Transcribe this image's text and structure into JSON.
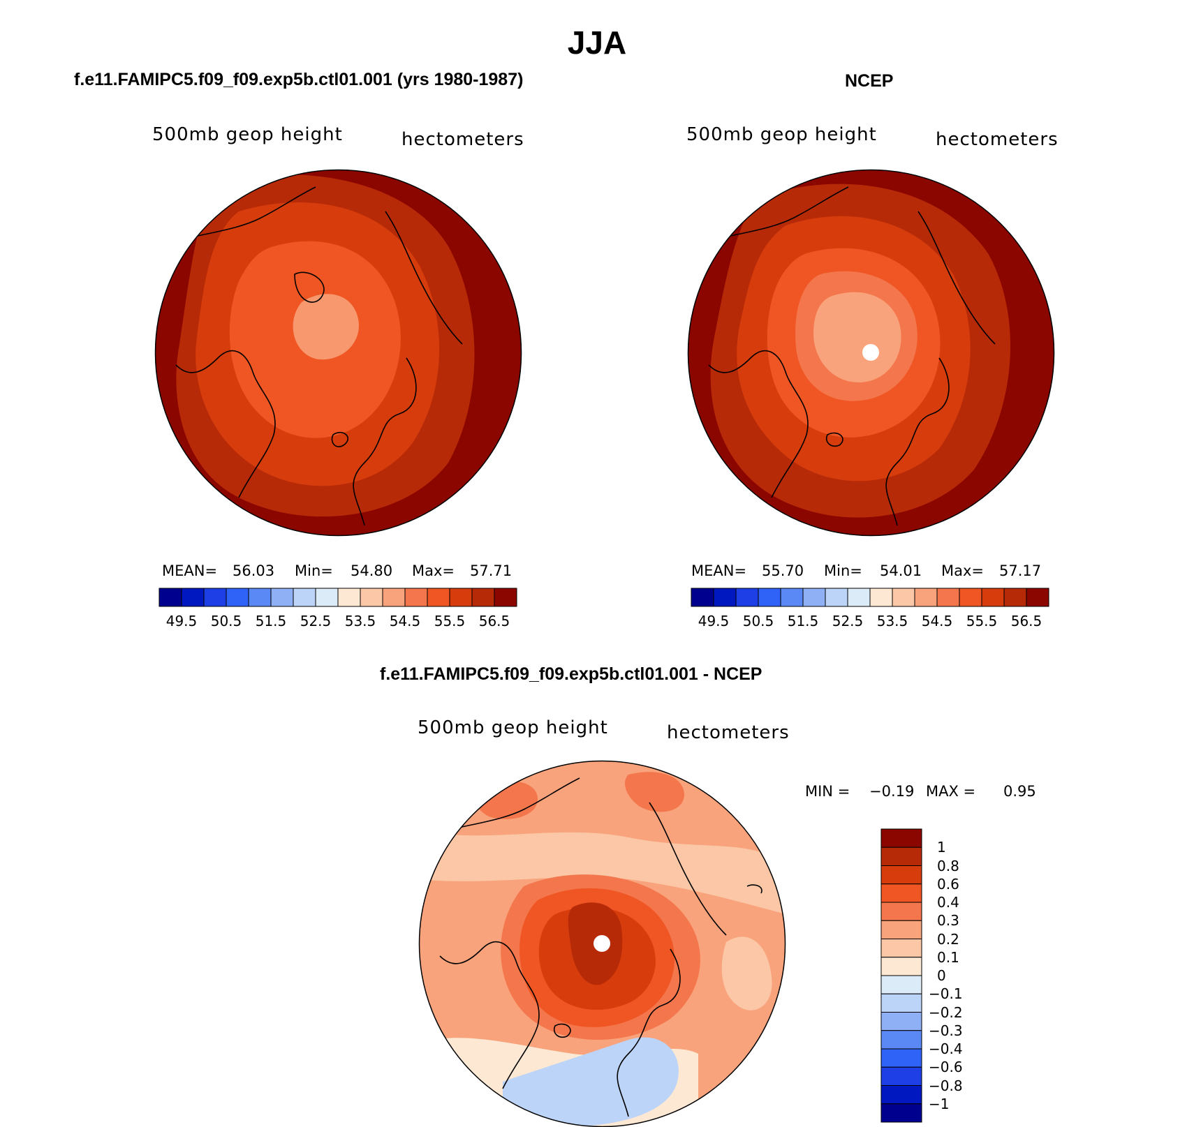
{
  "title": "JJA",
  "panels": [
    {
      "title": "f.e11.FAMIPC5.f09_f09.exp5b.ctl01.001 (yrs 1980-1987)",
      "variable": "500mb geop height",
      "units": "hectometers",
      "mean_label": "MEAN=",
      "mean": "56.03",
      "min_label": "Min=",
      "min": "54.80",
      "max_label": "Max=",
      "max": "57.71"
    },
    {
      "title": "NCEP",
      "variable": "500mb geop height",
      "units": "hectometers",
      "mean_label": "MEAN=",
      "mean": "55.70",
      "min_label": "Min=",
      "min": "54.01",
      "max_label": "Max=",
      "max": "57.17"
    },
    {
      "title": "f.e11.FAMIPC5.f09_f09.exp5b.ctl01.001 - NCEP",
      "variable": "500mb geop height",
      "units": "hectometers",
      "min_label": "MIN =",
      "min": "−0.19",
      "max_label": "MAX =",
      "max": "0.95"
    }
  ],
  "colorbar_top": {
    "colors": [
      "#00008f",
      "#0018c0",
      "#1f3fe6",
      "#2f62f6",
      "#5a88f5",
      "#8fb0f5",
      "#bcd4f8",
      "#dcebf8",
      "#fde8d4",
      "#fbc7a6",
      "#f8a37b",
      "#f4764d",
      "#ef5623",
      "#d63c0c",
      "#b72a08",
      "#8c0600"
    ],
    "labels": [
      "49.5",
      "50.5",
      "51.5",
      "52.5",
      "53.5",
      "54.5",
      "55.5",
      "56.5"
    ]
  },
  "colorbar_diff": {
    "colors": [
      "#8c0600",
      "#b72a08",
      "#d63c0c",
      "#ef5623",
      "#f4764d",
      "#f8a37b",
      "#fbc7a6",
      "#fde8d4",
      "#dcebf8",
      "#bcd4f8",
      "#8fb0f5",
      "#5a88f5",
      "#2f62f6",
      "#1f3fe6",
      "#0018c0",
      "#00008f"
    ],
    "labels": [
      "1",
      "0.8",
      "0.6",
      "0.4",
      "0.3",
      "0.2",
      "0.1",
      "0",
      "−0.1",
      "−0.2",
      "−0.3",
      "−0.4",
      "−0.6",
      "−0.8",
      "−1"
    ]
  },
  "map_fields": {
    "panel1": [
      "#8c0600",
      "#b72a08",
      "#d63c0c",
      "#ef5623",
      "#f8a37b"
    ],
    "panel2": [
      "#8c0600",
      "#b72a08",
      "#d63c0c",
      "#ef5623",
      "#f4764d",
      "#f8a37b"
    ],
    "diff": [
      "#f8a37b",
      "#fbc7a6",
      "#f4764d",
      "#ef5623",
      "#d63c0c",
      "#b72a08",
      "#bcd4f8",
      "#fde8d4"
    ]
  }
}
